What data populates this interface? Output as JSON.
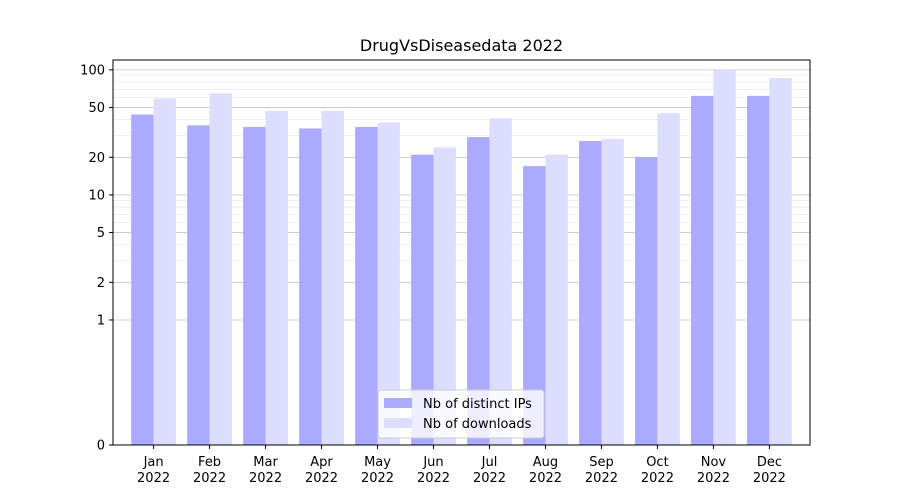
{
  "chart_data": {
    "type": "bar",
    "title": "DrugVsDiseasedata 2022",
    "xlabel": "",
    "ylabel": "",
    "yscale": "symlog",
    "ylim": [
      0,
      120
    ],
    "yticks": [
      0,
      1,
      2,
      5,
      10,
      20,
      50,
      100
    ],
    "ytick_labels": [
      "0",
      "1",
      "2",
      "5",
      "10",
      "20",
      "50",
      "100"
    ],
    "grid": true,
    "legend_position": "bottom-center",
    "categories": [
      {
        "month": "Jan",
        "year": "2022"
      },
      {
        "month": "Feb",
        "year": "2022"
      },
      {
        "month": "Mar",
        "year": "2022"
      },
      {
        "month": "Apr",
        "year": "2022"
      },
      {
        "month": "May",
        "year": "2022"
      },
      {
        "month": "Jun",
        "year": "2022"
      },
      {
        "month": "Jul",
        "year": "2022"
      },
      {
        "month": "Aug",
        "year": "2022"
      },
      {
        "month": "Sep",
        "year": "2022"
      },
      {
        "month": "Oct",
        "year": "2022"
      },
      {
        "month": "Nov",
        "year": "2022"
      },
      {
        "month": "Dec",
        "year": "2022"
      }
    ],
    "series": [
      {
        "name": "Nb of distinct IPs",
        "color": "#aaaaff",
        "values": [
          44,
          36,
          35,
          34,
          35,
          21,
          29,
          17,
          27,
          20,
          62,
          62
        ]
      },
      {
        "name": "Nb of downloads",
        "color": "#ddddff",
        "values": [
          59,
          65,
          47,
          47,
          38,
          24,
          41,
          21,
          28,
          45,
          100,
          86
        ]
      }
    ]
  }
}
